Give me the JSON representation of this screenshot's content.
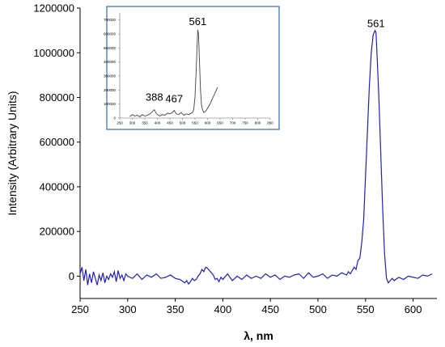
{
  "chart_data": [
    {
      "type": "line",
      "xlabel": "λ, nm",
      "ylabel": "Intensity (Arbitrary Units)",
      "xlim": [
        250,
        625
      ],
      "ylim": [
        -100000,
        1200000
      ],
      "x_ticks": [
        "250",
        "300",
        "350",
        "400",
        "450",
        "500",
        "550",
        "600"
      ],
      "y_ticks": [
        "0",
        "200000",
        "400000",
        "600000",
        "800000",
        "1000000",
        "1200000"
      ],
      "line_color": "#1f1fbf",
      "annotations": [
        {
          "label": "561",
          "x": 561,
          "y": 1100000
        }
      ],
      "series": [
        {
          "x": [
            250,
            252,
            254,
            256,
            258,
            260,
            262,
            264,
            266,
            268,
            270,
            272,
            274,
            276,
            278,
            280,
            282,
            284,
            286,
            288,
            290,
            292,
            294,
            296,
            298,
            300,
            305,
            310,
            315,
            320,
            325,
            330,
            335,
            340,
            345,
            350,
            355,
            360,
            362,
            364,
            366,
            368,
            370,
            372,
            374,
            376,
            378,
            380,
            382,
            384,
            386,
            388,
            390,
            392,
            394,
            396,
            398,
            400,
            405,
            410,
            415,
            420,
            425,
            430,
            435,
            440,
            445,
            450,
            455,
            460,
            465,
            470,
            475,
            480,
            485,
            490,
            495,
            500,
            505,
            510,
            515,
            520,
            525,
            530,
            532,
            534,
            536,
            538,
            540,
            542,
            544,
            546,
            548,
            550,
            552,
            554,
            556,
            558,
            560,
            561,
            562,
            564,
            566,
            568,
            570,
            572,
            574,
            576,
            578,
            580,
            585,
            590,
            595,
            600,
            605,
            610,
            615,
            620
          ],
          "values": [
            10000,
            40000,
            -20000,
            30000,
            -40000,
            10000,
            -30000,
            20000,
            -10000,
            -40000,
            5000,
            -20000,
            15000,
            -30000,
            0,
            -15000,
            10000,
            -5000,
            20000,
            -25000,
            25000,
            -10000,
            5000,
            -20000,
            10000,
            0,
            -10000,
            10000,
            -15000,
            5000,
            -5000,
            10000,
            -10000,
            -5000,
            5000,
            -10000,
            -15000,
            -30000,
            -20000,
            -35000,
            -25000,
            -10000,
            -20000,
            -15000,
            0,
            10000,
            30000,
            20000,
            40000,
            35000,
            25000,
            15000,
            5000,
            -15000,
            -10000,
            -25000,
            -5000,
            -15000,
            10000,
            -20000,
            0,
            -15000,
            5000,
            -10000,
            0,
            -10000,
            10000,
            -5000,
            5000,
            -15000,
            0,
            -5000,
            5000,
            10000,
            -10000,
            15000,
            -5000,
            0,
            10000,
            -10000,
            5000,
            0,
            15000,
            5000,
            20000,
            10000,
            25000,
            40000,
            30000,
            70000,
            80000,
            150000,
            250000,
            450000,
            650000,
            850000,
            1000000,
            1080000,
            1100000,
            1090000,
            1000000,
            800000,
            550000,
            300000,
            100000,
            -10000,
            -30000,
            -20000,
            -10000,
            -20000,
            -5000,
            -15000,
            0,
            -5000,
            -10000,
            5000,
            0,
            10000
          ]
        }
      ]
    },
    {
      "type": "line",
      "inset": true,
      "xlim": [
        250,
        850
      ],
      "ylim": [
        0,
        750000
      ],
      "x_ticks": [
        "250",
        "300",
        "350",
        "400",
        "450",
        "500",
        "550",
        "600",
        "650",
        "700",
        "750",
        "800",
        "850"
      ],
      "y_ticks": [
        "0",
        "100000",
        "200000",
        "300000",
        "400000",
        "500000",
        "600000",
        "700000"
      ],
      "line_color": "#444444",
      "annotations": [
        {
          "label": "388",
          "x": 388,
          "y": 100000
        },
        {
          "label": "467",
          "x": 467,
          "y": 90000
        },
        {
          "label": "561",
          "x": 561,
          "y": 640000
        }
      ],
      "series": [
        {
          "x": [
            290,
            300,
            310,
            320,
            330,
            340,
            350,
            360,
            370,
            380,
            388,
            395,
            400,
            410,
            420,
            430,
            440,
            450,
            460,
            467,
            475,
            485,
            495,
            505,
            515,
            525,
            535,
            540,
            545,
            550,
            555,
            558,
            561,
            564,
            568,
            572,
            576,
            580,
            585,
            590,
            595,
            600,
            610,
            620,
            630,
            640
          ],
          "values": [
            10000,
            25000,
            15000,
            20000,
            10000,
            25000,
            15000,
            20000,
            30000,
            45000,
            60000,
            35000,
            25000,
            15000,
            25000,
            20000,
            35000,
            30000,
            40000,
            55000,
            30000,
            25000,
            40000,
            20000,
            30000,
            25000,
            35000,
            40000,
            60000,
            150000,
            350000,
            500000,
            630000,
            600000,
            400000,
            200000,
            90000,
            60000,
            40000,
            45000,
            55000,
            70000,
            100000,
            140000,
            180000,
            220000
          ]
        }
      ]
    }
  ]
}
